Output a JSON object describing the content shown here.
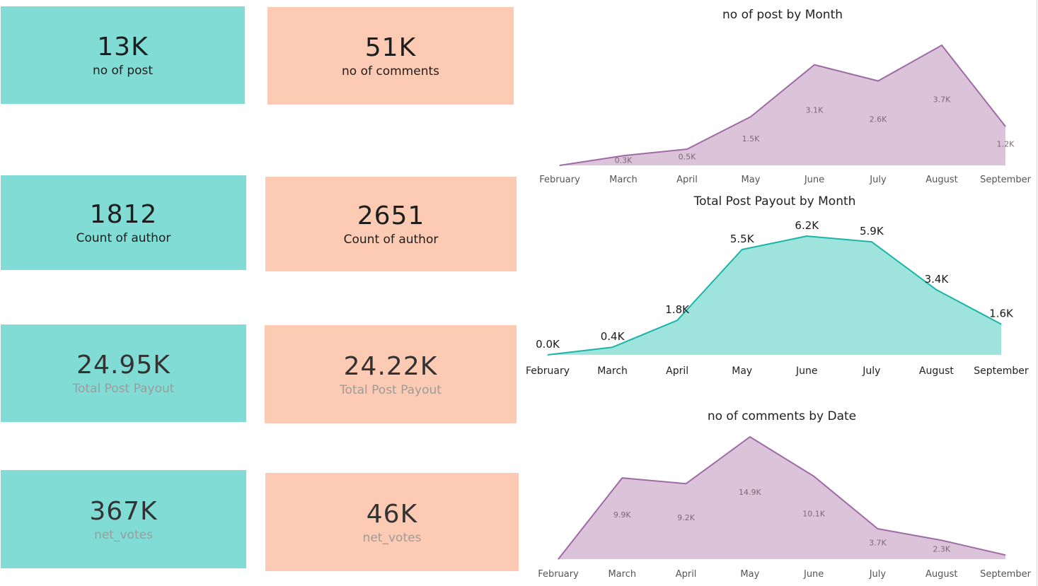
{
  "kpis": [
    {
      "value": "13K",
      "label": "no of post",
      "variant": "teal"
    },
    {
      "value": "51K",
      "label": "no of comments",
      "variant": "peach"
    },
    {
      "value": "1812",
      "label": "Count of author",
      "variant": "teal"
    },
    {
      "value": "2651",
      "label": "Count of author",
      "variant": "peach"
    },
    {
      "value": "24.95K",
      "label": "Total Post Payout",
      "variant": "teal"
    },
    {
      "value": "24.22K",
      "label": "Total Post Payout",
      "variant": "peach"
    },
    {
      "value": "367K",
      "label": "net_votes",
      "variant": "teal"
    },
    {
      "value": "46K",
      "label": "net_votes",
      "variant": "peach"
    }
  ],
  "colors": {
    "teal_card": "#80dcd4",
    "peach_card": "#fdcab3",
    "purple_line": "#a06aa6",
    "purple_fill": "#dbc4d9",
    "teal_line": "#1ab5a8",
    "teal_fill": "#9ee4dd"
  },
  "chart_data": [
    {
      "type": "area",
      "title": "no of post by Month",
      "categories": [
        "February",
        "March",
        "April",
        "May",
        "June",
        "July",
        "August",
        "September"
      ],
      "values": [
        0.0,
        0.3,
        0.5,
        1.5,
        3.1,
        2.6,
        3.7,
        1.2
      ],
      "data_labels": [
        "",
        "0.3K",
        "0.5K",
        "1.5K",
        "3.1K",
        "2.6K",
        "3.7K",
        "1.2K"
      ],
      "ylim": [
        0,
        3.7
      ],
      "xlabel": "",
      "ylabel": "",
      "grid": false
    },
    {
      "type": "area",
      "title": "Total Post Payout by Month",
      "categories": [
        "February",
        "March",
        "April",
        "May",
        "June",
        "July",
        "August",
        "September"
      ],
      "values": [
        0.0,
        0.4,
        1.8,
        5.5,
        6.2,
        5.9,
        3.4,
        1.6
      ],
      "data_labels": [
        "0.0K",
        "0.4K",
        "1.8K",
        "5.5K",
        "6.2K",
        "5.9K",
        "3.4K",
        "1.6K"
      ],
      "ylim": [
        0,
        6.2
      ],
      "xlabel": "",
      "ylabel": "",
      "grid": false
    },
    {
      "type": "area",
      "title": "no of comments by Date",
      "categories": [
        "February",
        "March",
        "April",
        "May",
        "June",
        "July",
        "August",
        "September"
      ],
      "values": [
        0.0,
        9.9,
        9.2,
        14.9,
        10.1,
        3.7,
        2.3,
        0.5
      ],
      "data_labels": [
        "",
        "9.9K",
        "9.2K",
        "14.9K",
        "10.1K",
        "3.7K",
        "2.3K",
        ""
      ],
      "ylim": [
        0,
        14.9
      ],
      "xlabel": "",
      "ylabel": "",
      "grid": false
    }
  ]
}
